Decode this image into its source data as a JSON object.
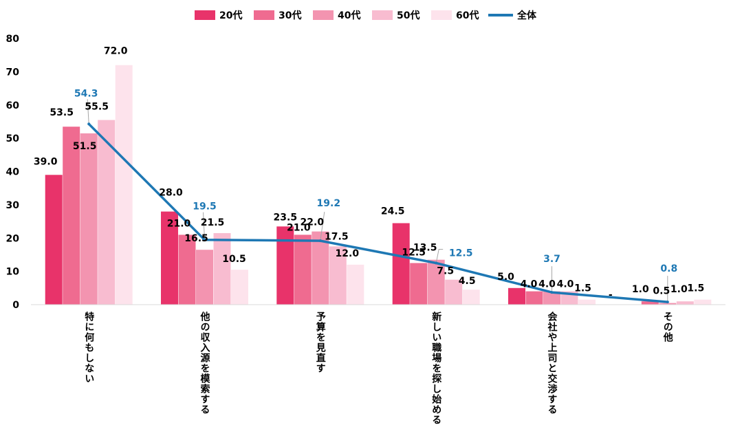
{
  "chart_data": {
    "type": "bar",
    "title": "",
    "xlabel": "",
    "ylabel": "",
    "ylim": [
      0,
      80
    ],
    "yticks": [
      0,
      10,
      20,
      30,
      40,
      50,
      60,
      70,
      80
    ],
    "grid": false,
    "legend_position": "top",
    "categories": [
      "特に何もしない",
      "他の収入源を模索する",
      "予算を見直す",
      "新しい職場を探し始める",
      "会社や上司と交渉する",
      "その他"
    ],
    "series": [
      {
        "name": "20代",
        "color": "#e8336a",
        "values": [
          39.0,
          28.0,
          23.5,
          24.5,
          5.0,
          0
        ],
        "labels": [
          "39.0",
          "28.0",
          "23.5",
          "24.5",
          "5.0",
          "-"
        ]
      },
      {
        "name": "30代",
        "color": "#ef6b90",
        "values": [
          53.5,
          21.0,
          21.0,
          12.5,
          4.0,
          1.0
        ],
        "labels": [
          "53.5",
          "21.0",
          "21.0",
          "12.5",
          "4.0",
          "1.0"
        ]
      },
      {
        "name": "40代",
        "color": "#f394b0",
        "values": [
          51.5,
          16.5,
          22.0,
          13.5,
          4.0,
          0.5
        ],
        "labels": [
          "51.5",
          "16.5",
          "22.0",
          "13.5",
          "4.0",
          "0.5"
        ]
      },
      {
        "name": "50代",
        "color": "#f8bcd0",
        "values": [
          55.5,
          21.5,
          17.5,
          7.5,
          4.0,
          1.0
        ],
        "labels": [
          "55.5",
          "21.5",
          "17.5",
          "7.5",
          "4.0",
          "1.0"
        ]
      },
      {
        "name": "60代",
        "color": "#fde3ec",
        "values": [
          72.0,
          10.5,
          12.0,
          4.5,
          1.5,
          1.5
        ],
        "labels": [
          "72.0",
          "10.5",
          "12.0",
          "4.5",
          "1.5",
          "1.5"
        ]
      }
    ],
    "line_series": {
      "name": "全体",
      "color": "#1e78b4",
      "values": [
        54.3,
        19.5,
        19.2,
        12.5,
        3.7,
        0.8
      ],
      "labels": [
        "54.3",
        "19.5",
        "19.2",
        "12.5",
        "3.7",
        "0.8"
      ]
    }
  }
}
